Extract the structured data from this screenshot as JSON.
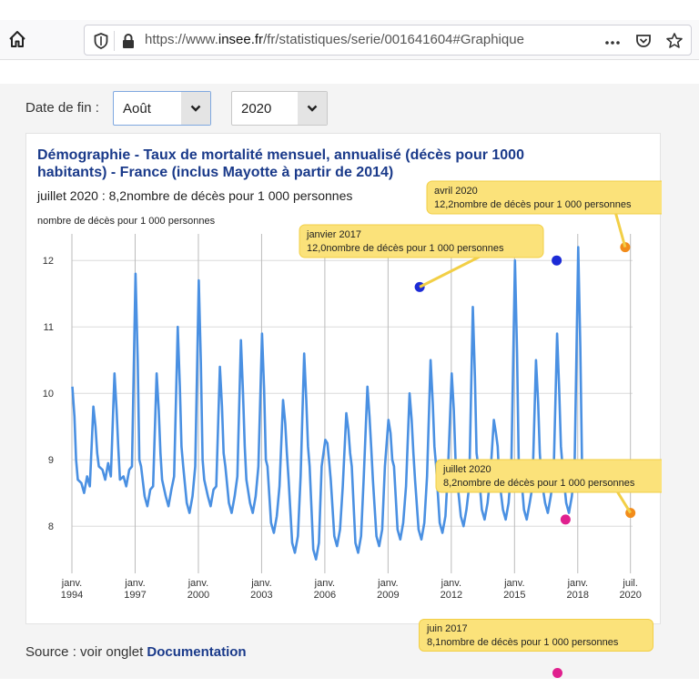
{
  "browser": {
    "url_prefix": "https://www.",
    "url_domain": "insee.fr",
    "url_path": "/fr/statistiques/serie/001641604#Graphique",
    "icons": [
      "home-icon",
      "shield-icon",
      "lock-icon",
      "more-icon",
      "pocket-icon",
      "star-icon"
    ]
  },
  "filters": {
    "end_label": "Date de fin :",
    "month_value": "Août",
    "year_value": "2020"
  },
  "chart": {
    "title": "Démographie - Taux de mortalité mensuel, annualisé (décès pour 1000 habitants) - France (inclus Mayotte à partir de 2014)",
    "subtitle": "juillet 2020 : 8,2nombre de décès pour 1 000 personnes",
    "unit_label": "nombre de décès pour 1 000 personnes",
    "line_color": "#4a90e2"
  },
  "tooltips": [
    {
      "id": "jan2017",
      "title": "janvier 2017",
      "text": "12,0nombre de décès pour 1 000 personnes"
    },
    {
      "id": "apr2020",
      "title": "avril 2020",
      "text": "12,2nombre de décès pour 1 000 personnes"
    },
    {
      "id": "jul2020",
      "title": "juillet 2020",
      "text": "8,2nombre de décès pour 1 000 personnes"
    },
    {
      "id": "jun2017",
      "title": "juin 2017",
      "text": "8,1nombre de décès pour 1 000 personnes"
    }
  ],
  "chart_data": {
    "type": "line",
    "ylim": [
      7.4,
      12.4
    ],
    "y_ticks": [
      8,
      9,
      10,
      11,
      12
    ],
    "x_ticks": [
      {
        "year": 1994,
        "month": "janv.",
        "label": "1994"
      },
      {
        "year": 1997,
        "month": "janv.",
        "label": "1997"
      },
      {
        "year": 2000,
        "month": "janv.",
        "label": "2000"
      },
      {
        "year": 2003,
        "month": "janv.",
        "label": "2003"
      },
      {
        "year": 2006,
        "month": "janv.",
        "label": "2006"
      },
      {
        "year": 2009,
        "month": "janv.",
        "label": "2009"
      },
      {
        "year": 2012,
        "month": "janv.",
        "label": "2012"
      },
      {
        "year": 2015,
        "month": "janv.",
        "label": "2015"
      },
      {
        "year": 2018,
        "month": "janv.",
        "label": "2018"
      },
      {
        "year": 2020.5,
        "month": "juil.",
        "label": "2020"
      }
    ],
    "grid": true,
    "start_year": 1994,
    "winter_peaks": [
      10.1,
      9.8,
      10.3,
      11.8,
      10.3,
      11.0,
      11.7,
      10.4,
      10.8,
      10.9,
      9.9,
      10.6,
      9.3,
      9.7,
      10.1,
      9.6,
      10.0,
      10.5,
      10.3,
      11.3,
      9.6,
      12.0,
      10.5,
      10.9,
      12.2
    ],
    "summer_troughs": [
      8.5,
      8.7,
      8.6,
      8.3,
      8.3,
      8.2,
      8.3,
      8.2,
      8.2,
      7.9,
      7.6,
      7.5,
      7.7,
      7.6,
      7.7,
      7.8,
      7.8,
      7.9,
      8.0,
      8.1,
      8.1,
      8.1,
      8.2,
      8.2
    ],
    "markers": [
      {
        "year": 2010.5,
        "value": 11.6,
        "color": "#1c2bd6"
      },
      {
        "year": 2017.0,
        "value": 12.0,
        "color": "#1c2bd6"
      },
      {
        "year": 2017.42,
        "value": 8.1,
        "color": "#e0208e"
      },
      {
        "year": 2020.25,
        "value": 12.2,
        "color": "#f28c1b"
      },
      {
        "year": 2020.5,
        "value": 8.2,
        "color": "#f28c1b"
      }
    ]
  },
  "source": {
    "prefix": "Source : voir onglet ",
    "link": "Documentation"
  }
}
